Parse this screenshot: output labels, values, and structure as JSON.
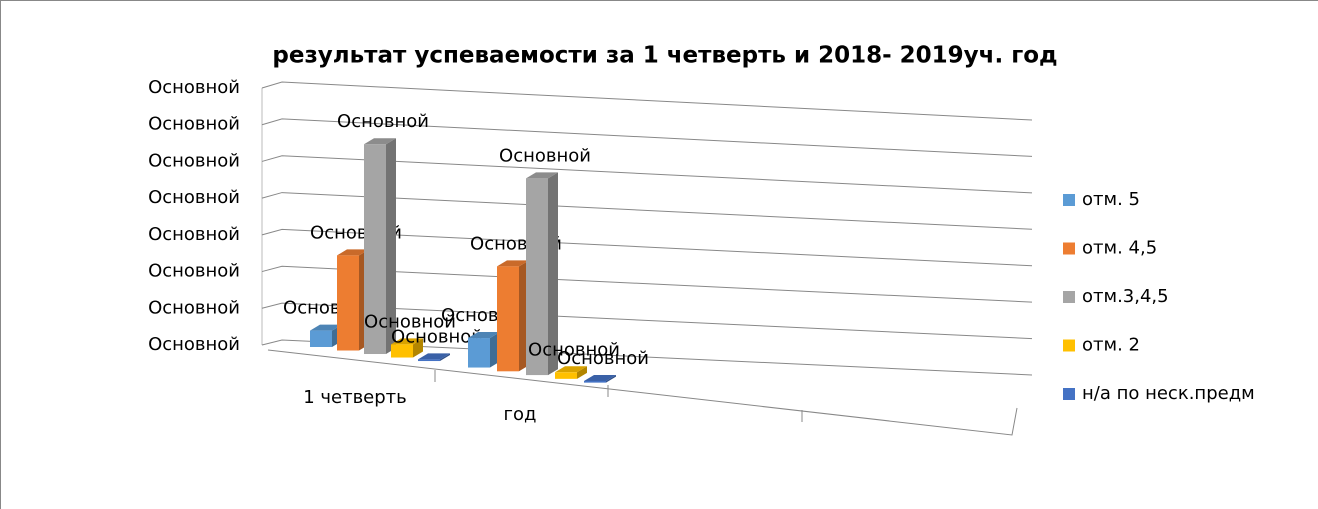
{
  "chart_data": {
    "type": "bar3d",
    "title": "результат успеваемости за 1 четверть и 2018- 2019уч. год",
    "categories": [
      "1 четверть",
      "год"
    ],
    "series": [
      {
        "name": "отм. 5",
        "color": "#5b9bd5",
        "values": [
          0.5,
          0.9
        ],
        "value_labels": [
          "Основной",
          "Основной"
        ]
      },
      {
        "name": "отм. 4,5",
        "color": "#ed7d31",
        "values": [
          2.9,
          3.2
        ],
        "value_labels": [
          "Основной",
          "Основной"
        ]
      },
      {
        "name": "отм.3,4,5",
        "color": "#a5a5a5",
        "values": [
          6.4,
          6.0
        ],
        "value_labels": [
          "Основной",
          "Основной"
        ]
      },
      {
        "name": "отм. 2",
        "color": "#ffc000",
        "values": [
          0.4,
          0.2
        ],
        "value_labels": [
          "Основной",
          "Основной"
        ]
      },
      {
        "name": "н/а по неск.предм",
        "color": "#4472c4",
        "values": [
          0.05,
          0.05
        ],
        "value_labels": [
          "Основной",
          "Основной"
        ]
      }
    ],
    "ylim": [
      0,
      7
    ],
    "yticks": [
      {
        "value": 0,
        "label": "Основной"
      },
      {
        "value": 1,
        "label": "Основной"
      },
      {
        "value": 2,
        "label": "Основной"
      },
      {
        "value": 3,
        "label": "Основной"
      },
      {
        "value": 4,
        "label": "Основной"
      },
      {
        "value": 5,
        "label": "Основной"
      },
      {
        "value": 6,
        "label": "Основной"
      },
      {
        "value": 7,
        "label": "Основной"
      }
    ],
    "grid": true,
    "legend": "right"
  }
}
